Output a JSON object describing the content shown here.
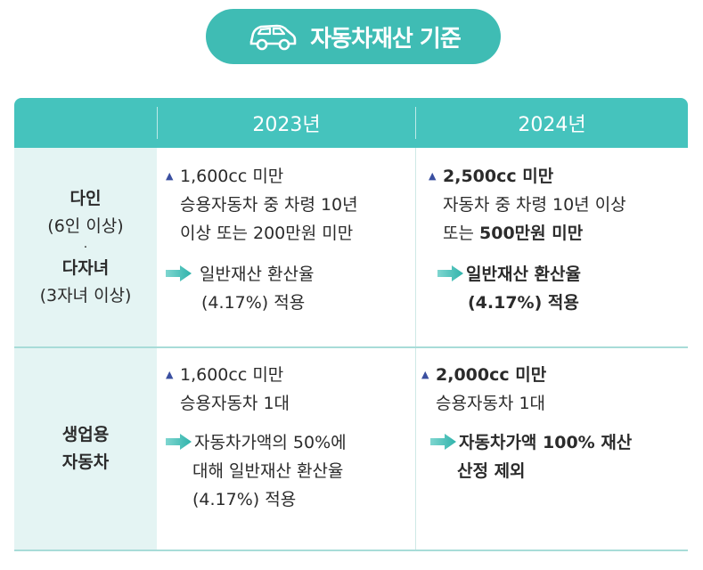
{
  "banner": {
    "title": "자동차재산 기준",
    "icon": "car-icon"
  },
  "table": {
    "headers": [
      "",
      "2023년",
      "2024년"
    ],
    "rows": [
      {
        "label_line1": "다인",
        "label_line2": "(6인 이상)",
        "label_sep": "·",
        "label_line3": "다자녀",
        "label_line4": "(3자녀 이상)",
        "y2023": {
          "line1": "1,600cc 미만",
          "line2": "승용자동차 중 차령 10년",
          "line3": "이상 또는 200만원 미만",
          "result1": "일반재산 환산율",
          "result2": "(4.17%) 적용"
        },
        "y2024": {
          "line1": "2,500cc 미만",
          "line2": "자동차 중 차령 10년 이상",
          "line3_prefix": "또는 ",
          "line3_bold": "500만원 미만",
          "result1": "일반재산 환산율",
          "result2": "(4.17%) 적용"
        }
      },
      {
        "label_line1": "생업용",
        "label_line2": "자동차",
        "y2023": {
          "line1": "1,600cc 미만",
          "line2": "승용자동차 1대",
          "result1": "자동차가액의 50%에",
          "result2": "대해 일반재산 환산율",
          "result3": "(4.17%) 적용"
        },
        "y2024": {
          "line1": "2,000cc 미만",
          "line2": "승용자동차 1대",
          "result1": "자동차가액 100% 재산",
          "result2": "산정 제외"
        }
      }
    ]
  },
  "colors": {
    "teal": "#3fbcb4",
    "header": "#45c3bd",
    "rowhead_bg": "#e4f4f3",
    "triangle": "#3a4fa0"
  }
}
